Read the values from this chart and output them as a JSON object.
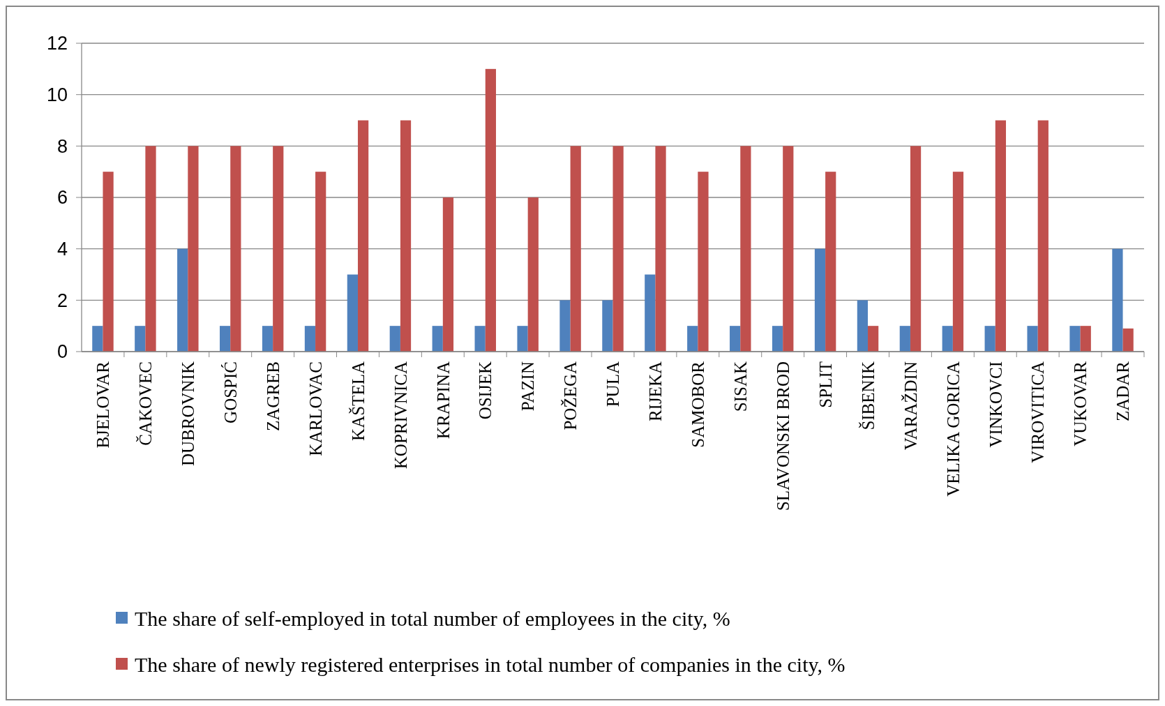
{
  "chart_data": {
    "type": "bar",
    "categories": [
      "BJELOVAR",
      "ČAKOVEC",
      "DUBROVNIK",
      "GOSPIĆ",
      "ZAGREB",
      "KARLOVAC",
      "KAŠTELA",
      "KOPRIVNICA",
      "KRAPINA",
      "OSIJEK",
      "PAZIN",
      "POŽEGA",
      "PULA",
      "RIJEKA",
      "SAMOBOR",
      "SISAK",
      "SLAVONSKI BROD",
      "SPLIT",
      "ŠIBENIK",
      "VARAŽDIN",
      "VELIKA GORICA",
      "VINKOVCI",
      "VIROVITICA",
      "VUKOVAR",
      "ZADAR"
    ],
    "series": [
      {
        "name": "The share of self-employed in total number of employees in the city, %",
        "color": "#4f81bd",
        "values": [
          1,
          1,
          4,
          1,
          1,
          1,
          3,
          1,
          1,
          1,
          1,
          2,
          2,
          3,
          1,
          1,
          1,
          4,
          2,
          1,
          1,
          1,
          1,
          1,
          4
        ]
      },
      {
        "name": "The share of newly registered enterprises in total number of companies in the city, %",
        "color": "#c0504d",
        "values": [
          7,
          8,
          8,
          8,
          8,
          7,
          9,
          9,
          6,
          11,
          6,
          8,
          8,
          8,
          7,
          8,
          8,
          7,
          1,
          8,
          7,
          9,
          9,
          1,
          0.9
        ]
      }
    ],
    "ylim": [
      0,
      12
    ],
    "yticks": [
      0,
      2,
      4,
      6,
      8,
      10,
      12
    ],
    "grid": "y",
    "legend": "bottom"
  }
}
